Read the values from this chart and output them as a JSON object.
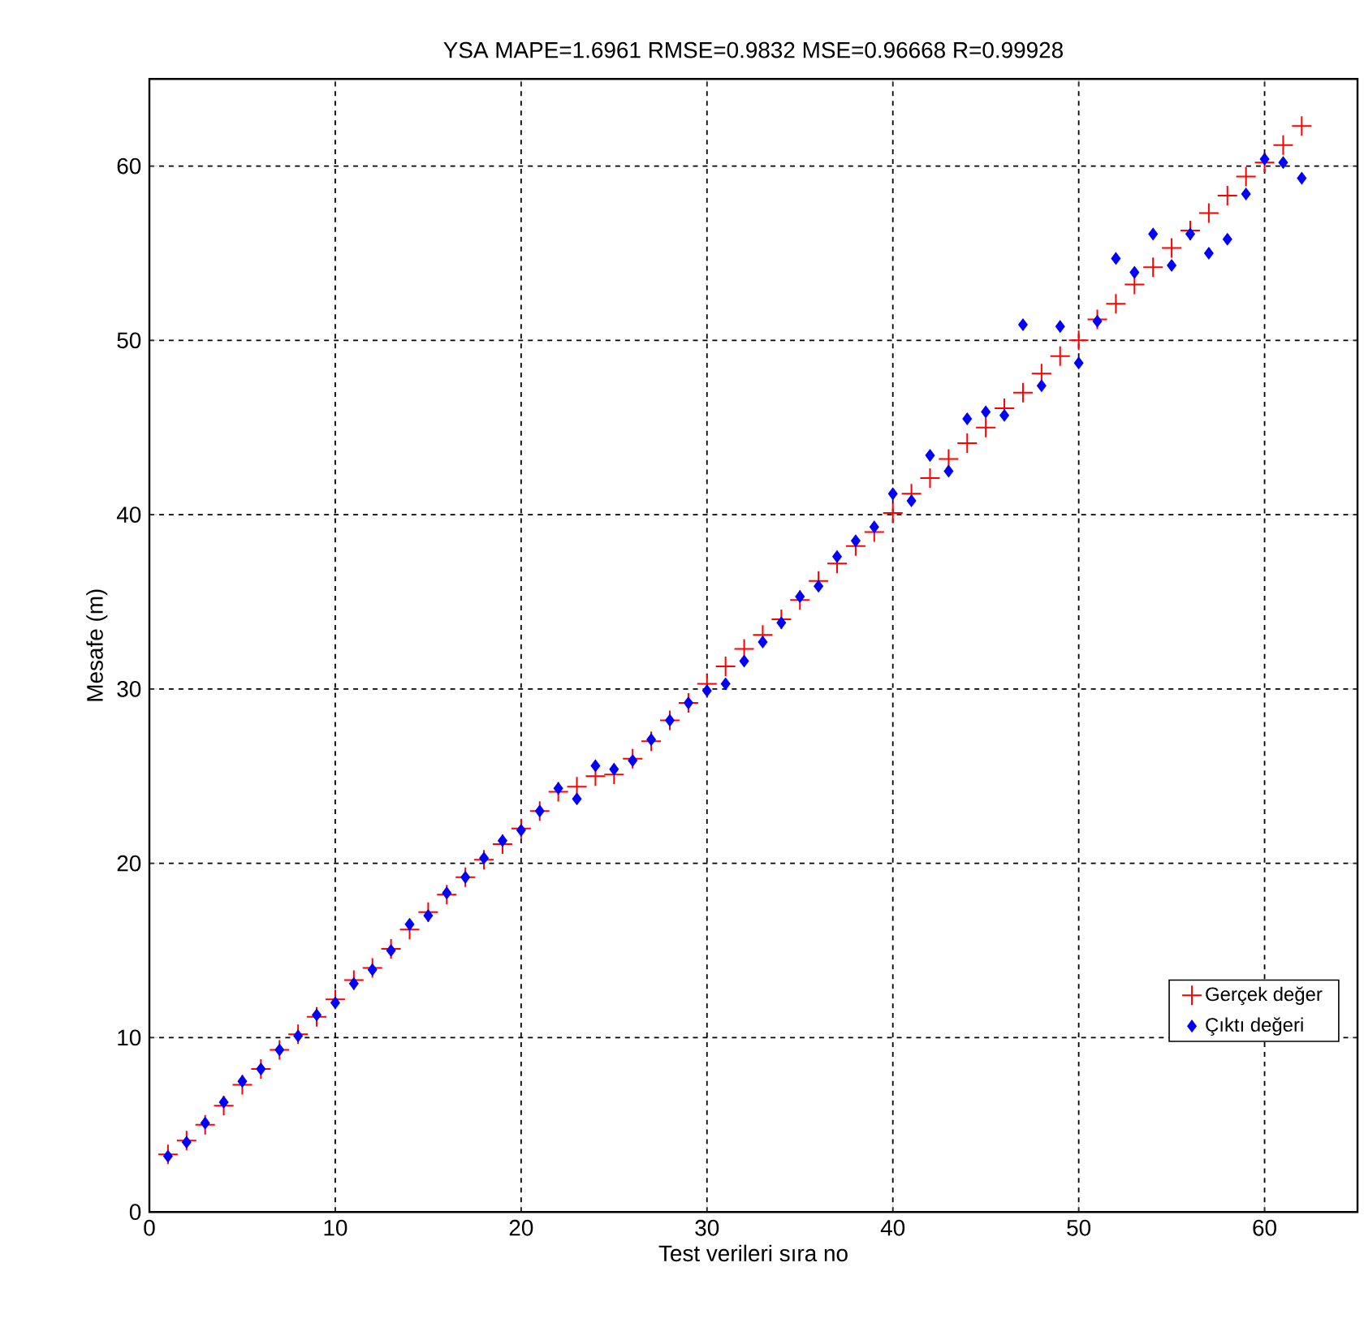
{
  "chart_data": {
    "type": "scatter",
    "title": "YSA MAPE=1.6961 RMSE=0.9832 MSE=0.96668  R=0.99928",
    "xlabel": "Test verileri sıra no",
    "ylabel": "Mesafe (m)",
    "x": [
      1,
      2,
      3,
      4,
      5,
      6,
      7,
      8,
      9,
      10,
      11,
      12,
      13,
      14,
      15,
      16,
      17,
      18,
      19,
      20,
      21,
      22,
      23,
      24,
      25,
      26,
      27,
      28,
      29,
      30,
      31,
      32,
      33,
      34,
      35,
      36,
      37,
      38,
      39,
      40,
      41,
      42,
      43,
      44,
      45,
      46,
      47,
      48,
      49,
      50,
      51,
      52,
      53,
      54,
      55,
      56,
      57,
      58,
      59,
      60,
      61,
      62
    ],
    "series": [
      {
        "name": "Gerçek değer",
        "color": "#ff0000",
        "marker": "cross",
        "values": [
          3.3,
          4.1,
          5.0,
          6.1,
          7.3,
          8.2,
          9.3,
          10.2,
          11.2,
          12.2,
          13.3,
          14.0,
          15.1,
          16.2,
          17.2,
          18.2,
          19.2,
          20.2,
          21.1,
          22.0,
          23.0,
          24.1,
          24.4,
          25.0,
          25.1,
          26.0,
          27.0,
          28.2,
          29.2,
          30.3,
          31.3,
          32.3,
          33.1,
          34.0,
          35.1,
          36.2,
          37.2,
          38.2,
          39.0,
          40.1,
          41.2,
          42.1,
          43.2,
          44.1,
          45.0,
          46.1,
          47.0,
          48.1,
          49.1,
          50.0,
          51.2,
          52.1,
          53.2,
          54.2,
          55.3,
          56.3,
          57.3,
          58.3,
          59.4,
          60.2,
          61.2,
          62.3
        ]
      },
      {
        "name": "Çıktı değeri",
        "color": "#0000ff",
        "marker": "diamond",
        "values": [
          3.2,
          4.0,
          5.1,
          6.3,
          7.5,
          8.2,
          9.3,
          10.1,
          11.3,
          12.0,
          13.1,
          13.9,
          15.0,
          16.5,
          17.0,
          18.3,
          19.2,
          20.3,
          21.3,
          21.9,
          23.0,
          24.3,
          23.7,
          25.6,
          25.4,
          25.9,
          27.1,
          28.2,
          29.2,
          29.9,
          30.3,
          31.6,
          32.7,
          33.8,
          35.3,
          35.9,
          37.6,
          38.5,
          39.3,
          41.2,
          40.8,
          43.4,
          42.5,
          45.5,
          45.9,
          45.7,
          50.9,
          47.4,
          50.8,
          48.7,
          51.1,
          54.7,
          53.9,
          56.1,
          54.3,
          56.1,
          55.0,
          55.8,
          58.4,
          60.4,
          60.2,
          59.3
        ]
      }
    ],
    "xlim": [
      0,
      65
    ],
    "ylim": [
      0,
      65
    ],
    "xticks": [
      0,
      10,
      20,
      30,
      40,
      50,
      60
    ],
    "yticks": [
      0,
      10,
      20,
      30,
      40,
      50,
      60
    ],
    "grid": true,
    "legend": "bottom right"
  }
}
